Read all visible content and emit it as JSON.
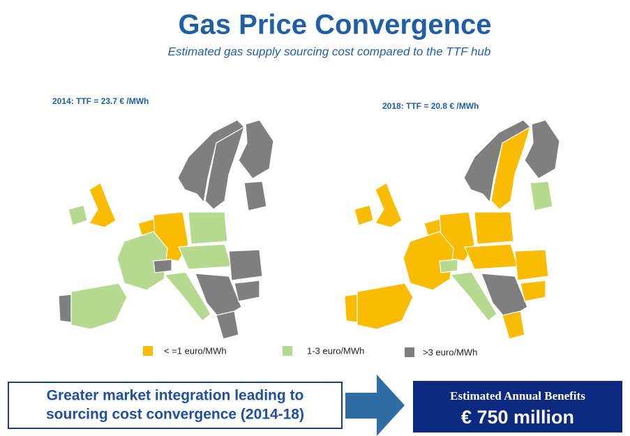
{
  "header": {
    "title": "Gas Price Convergence",
    "subtitle": "Estimated gas supply sourcing cost compared to the TTF hub"
  },
  "maps": [
    {
      "label": "2014: TTF = 23.7 € /MWh"
    },
    {
      "label": "2018: TTF = 20.8 € /MWh"
    }
  ],
  "legend": [
    "< =1 euro/MWh",
    "1-3 euro/MWh",
    ">3 euro/MWh"
  ],
  "footer": {
    "left_lines": [
      "Greater market integration leading to",
      "sourcing cost convergence (2014-18)"
    ],
    "right_title": "Estimated Annual Benefits",
    "right_value": "€ 750 million"
  }
}
